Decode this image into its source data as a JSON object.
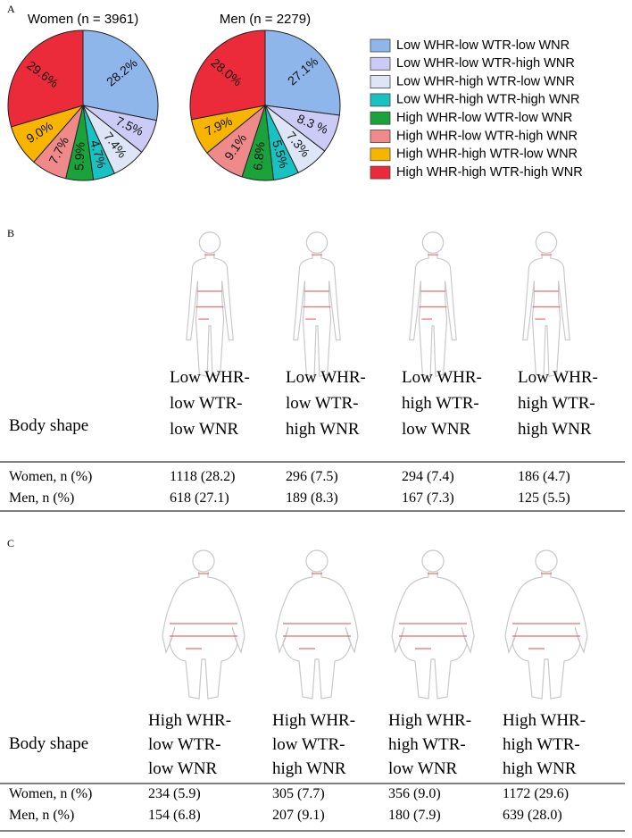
{
  "panel_labels": [
    "A",
    "B",
    "C"
  ],
  "chart_data": [
    {
      "type": "pie",
      "title": "Women (n = 3961)",
      "categories": [
        "Low WHR-low WTR-low WNR",
        "Low WHR-low WTR-high WNR",
        "Low WHR-high WTR-low WNR",
        "Low WHR-high WTR-high WNR",
        "High WHR-low WTR-low WNR",
        "High WHR-low WTR-high WNR",
        "High WHR-high WTR-low WNR",
        "High WHR-high WTR-high WNR"
      ],
      "values": [
        28.2,
        7.5,
        7.4,
        4.7,
        5.9,
        7.7,
        9.0,
        29.6
      ],
      "value_labels": [
        "28.2%",
        "7.5%",
        "7.4%",
        "4.7%",
        "5.9%",
        "7.7%",
        "9.0%",
        "29.6%"
      ],
      "colors": [
        "#8fb6ea",
        "#cccbf5",
        "#dde5f7",
        "#19c2c2",
        "#1aa33a",
        "#f08a8a",
        "#f7b500",
        "#eb2a3a"
      ],
      "legend": "right"
    },
    {
      "type": "pie",
      "title": "Men (n = 2279)",
      "categories": [
        "Low WHR-low WTR-low WNR",
        "Low WHR-low WTR-high WNR",
        "Low WHR-high WTR-low WNR",
        "Low WHR-high WTR-high WNR",
        "High WHR-low WTR-low WNR",
        "High WHR-low WTR-high WNR",
        "High WHR-high WTR-low WNR",
        "High WHR-high WTR-high WNR"
      ],
      "values": [
        27.1,
        8.3,
        7.3,
        5.5,
        6.8,
        9.1,
        7.9,
        28.0
      ],
      "value_labels": [
        "27.1%",
        "8.3 %",
        "7.3%",
        "5.5%",
        "6.8%",
        "9.1%",
        "7.9%",
        "28.0%"
      ],
      "colors": [
        "#8fb6ea",
        "#cccbf5",
        "#dde5f7",
        "#19c2c2",
        "#1aa33a",
        "#f08a8a",
        "#f7b500",
        "#eb2a3a"
      ]
    }
  ],
  "tables": [
    {
      "header_label": "Body shape",
      "columns": [
        [
          "Low WHR-",
          "low WTR-",
          "low WNR"
        ],
        [
          "Low WHR-",
          "low WTR-",
          "high WNR"
        ],
        [
          "Low WHR-",
          "high WTR-",
          "low WNR"
        ],
        [
          "Low WHR-",
          "high WTR-",
          "high WNR"
        ]
      ],
      "rows": [
        [
          "Women, n (%)",
          "1118 (28.2)",
          "296 (7.5)",
          "294 (7.4)",
          "186 (4.7)"
        ],
        [
          "Men, n (%)",
          "618 (27.1)",
          "189 (8.3)",
          "167 (7.3)",
          "125 (5.5)"
        ]
      ]
    },
    {
      "header_label": "Body shape",
      "columns": [
        [
          "High WHR-",
          "low WTR-",
          "low WNR"
        ],
        [
          "High WHR-",
          "low WTR-",
          "high WNR"
        ],
        [
          "High WHR-",
          "high WTR-",
          "low WNR"
        ],
        [
          "High WHR-",
          "high WTR-",
          "high WNR"
        ]
      ],
      "rows": [
        [
          "Women, n (%)",
          "234 (5.9)",
          "305 (7.7)",
          "356 (9.0)",
          "1172 (29.6)"
        ],
        [
          "Men, n (%)",
          "154 (6.8)",
          "207 (9.1)",
          "180 (7.9)",
          "639 (28.0)"
        ]
      ]
    }
  ]
}
